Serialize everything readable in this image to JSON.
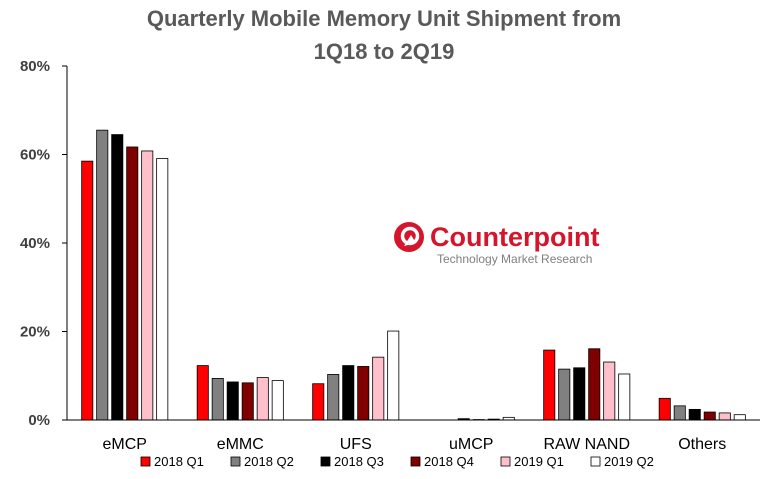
{
  "chart_data": {
    "type": "bar",
    "title_line1": "Quarterly Mobile Memory Unit Shipment from",
    "title_line2": "1Q18 to 2Q19",
    "xlabel": "",
    "ylabel": "",
    "ylim": [
      0,
      80
    ],
    "yticks": [
      "0%",
      "20%",
      "40%",
      "60%",
      "80%"
    ],
    "grid": false,
    "legend_position": "bottom",
    "categories": [
      "eMCP",
      "eMMC",
      "UFS",
      "uMCP",
      "RAW NAND",
      "Others"
    ],
    "series": [
      {
        "name": "2018 Q1",
        "color": "#ff0000",
        "values": [
          58.5,
          12.3,
          8.2,
          0.0,
          15.8,
          4.9
        ]
      },
      {
        "name": "2018 Q2",
        "color": "#808080",
        "values": [
          65.5,
          9.4,
          10.3,
          0.0,
          11.5,
          3.2
        ]
      },
      {
        "name": "2018 Q3",
        "color": "#000000",
        "values": [
          64.5,
          8.6,
          12.3,
          0.3,
          11.8,
          2.4
        ]
      },
      {
        "name": "2018 Q4",
        "color": "#800000",
        "values": [
          61.7,
          8.4,
          12.1,
          0.1,
          16.1,
          1.8
        ]
      },
      {
        "name": "2019 Q1",
        "color": "#ffc0cb",
        "values": [
          60.8,
          9.6,
          14.2,
          0.2,
          13.1,
          1.6
        ]
      },
      {
        "name": "2019 Q2",
        "color": "#ffffff",
        "values": [
          59.1,
          8.9,
          20.1,
          0.6,
          10.4,
          1.2
        ]
      }
    ]
  },
  "watermark": {
    "brand": "Counterpoint",
    "tagline": "Technology Market Research",
    "color": "#d5152b"
  }
}
